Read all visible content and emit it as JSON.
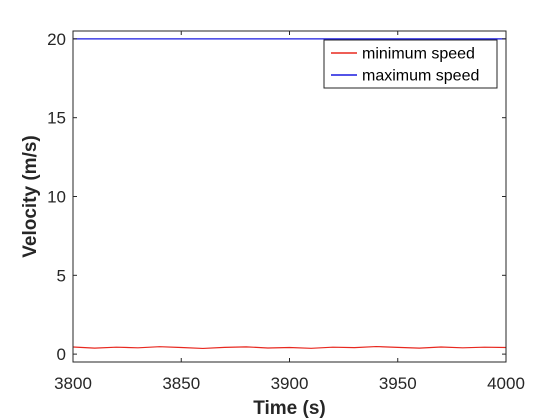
{
  "chart_data": {
    "type": "line",
    "title": "",
    "xlabel": "Time (s)",
    "ylabel": "Velocity (m/s)",
    "xlim": [
      3800,
      4000
    ],
    "ylim": [
      -0.5,
      20.5
    ],
    "xticks": [
      3800,
      3850,
      3900,
      3950,
      4000
    ],
    "yticks": [
      0,
      5,
      10,
      15,
      20
    ],
    "grid": false,
    "legend_position": "top-right",
    "series": [
      {
        "name": "minimum speed",
        "color": "#e8281f",
        "x": [
          3800,
          3810,
          3820,
          3830,
          3840,
          3850,
          3860,
          3870,
          3880,
          3890,
          3900,
          3910,
          3920,
          3930,
          3940,
          3950,
          3960,
          3970,
          3980,
          3990,
          4000
        ],
        "values": [
          0.45,
          0.38,
          0.44,
          0.4,
          0.47,
          0.42,
          0.36,
          0.43,
          0.46,
          0.39,
          0.42,
          0.37,
          0.44,
          0.41,
          0.48,
          0.43,
          0.38,
          0.45,
          0.4,
          0.44,
          0.42
        ]
      },
      {
        "name": "maximum speed",
        "color": "#1a1adf",
        "x": [
          3800,
          4000
        ],
        "values": [
          20,
          20
        ]
      }
    ]
  }
}
